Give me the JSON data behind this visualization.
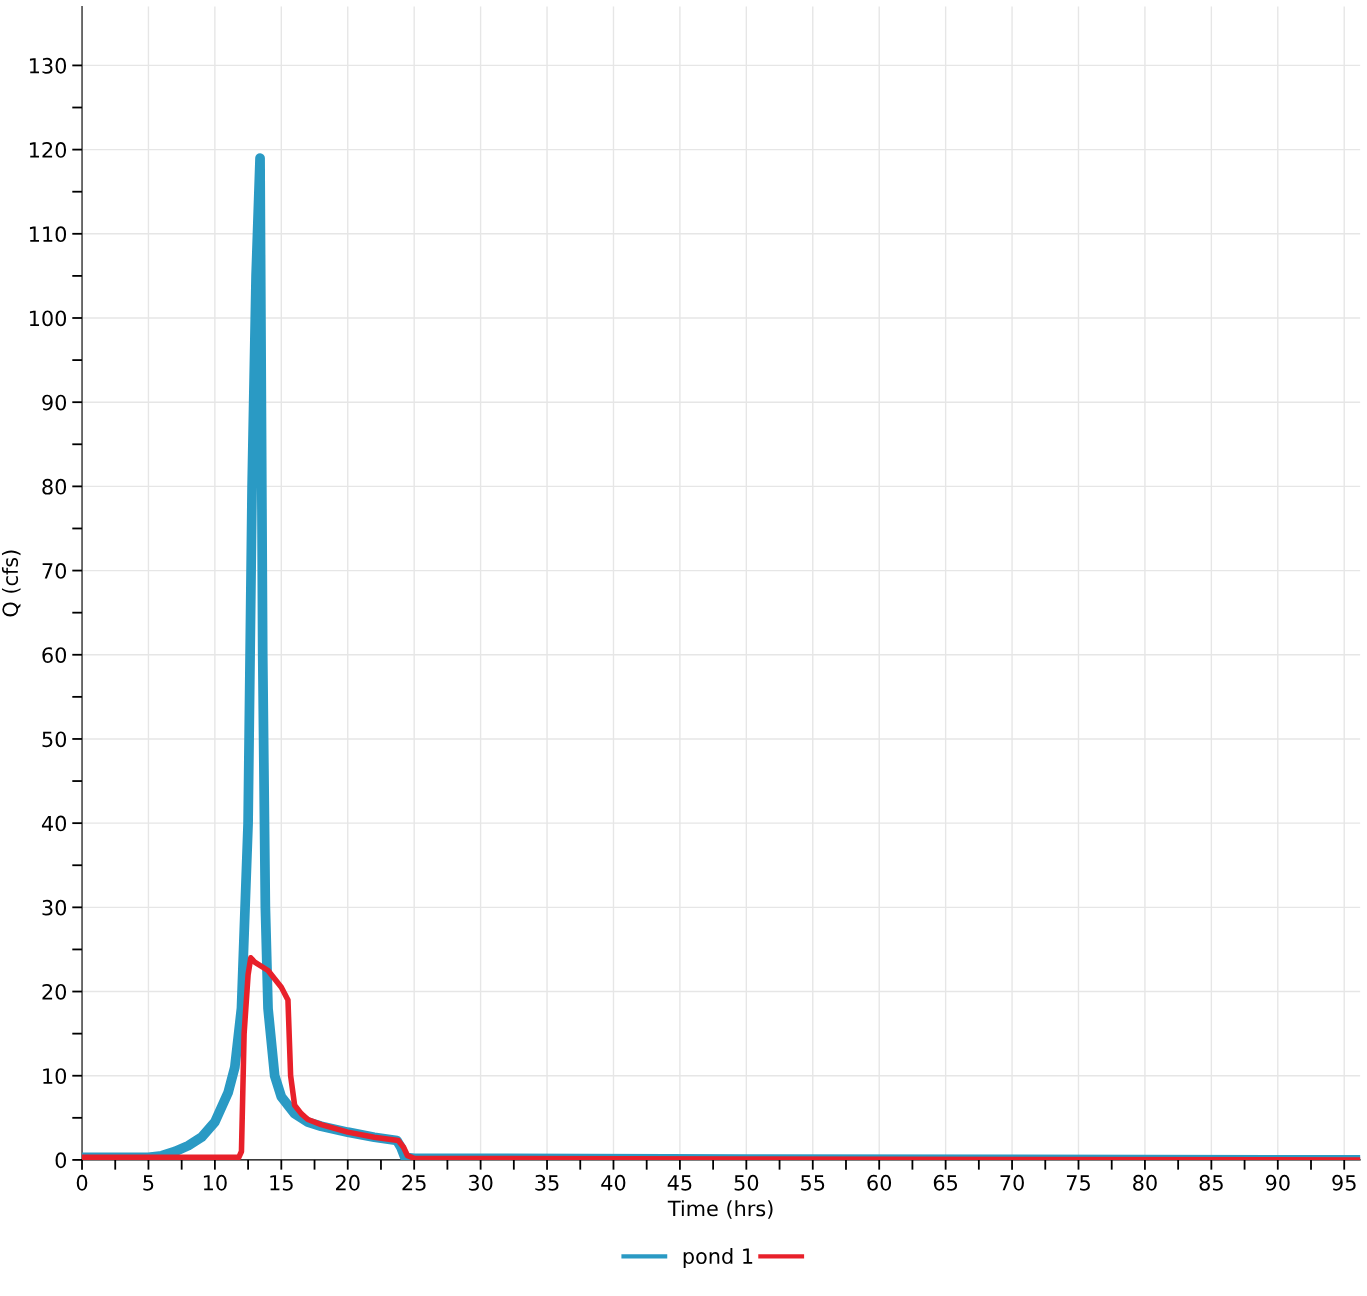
{
  "chart_data": {
    "type": "line",
    "xlabel": "Time (hrs)",
    "ylabel": "Q (cfs)",
    "xlim": [
      0,
      96.2
    ],
    "ylim": [
      0,
      137
    ],
    "xticks": [
      0,
      {
        "value": 2.5,
        "label": null
      },
      5,
      {
        "value": 7.5,
        "label": null
      },
      10,
      {
        "value": 12.5,
        "label": null
      },
      15,
      {
        "value": 17.5,
        "label": null
      },
      20,
      {
        "value": 22.5,
        "label": null
      },
      25,
      {
        "value": 27.5,
        "label": null
      },
      30,
      {
        "value": 32.5,
        "label": null
      },
      35,
      {
        "value": 37.5,
        "label": null
      },
      40,
      {
        "value": 42.5,
        "label": null
      },
      45,
      {
        "value": 47.5,
        "label": null
      },
      50,
      {
        "value": 52.5,
        "label": null
      },
      55,
      {
        "value": 57.5,
        "label": null
      },
      60,
      {
        "value": 62.5,
        "label": null
      },
      65,
      {
        "value": 67.5,
        "label": null
      },
      70,
      {
        "value": 72.5,
        "label": null
      },
      75,
      {
        "value": 77.5,
        "label": null
      },
      80,
      {
        "value": 82.5,
        "label": null
      },
      85,
      {
        "value": 87.5,
        "label": null
      },
      90,
      {
        "value": 92.5,
        "label": null
      },
      95
    ],
    "yticks": [
      0,
      {
        "value": 5,
        "label": null
      },
      10,
      {
        "value": 15,
        "label": null
      },
      20,
      {
        "value": 25,
        "label": null
      },
      30,
      {
        "value": 35,
        "label": null
      },
      40,
      {
        "value": 45,
        "label": null
      },
      50,
      {
        "value": 55,
        "label": null
      },
      60,
      {
        "value": 65,
        "label": null
      },
      70,
      {
        "value": 75,
        "label": null
      },
      80,
      {
        "value": 85,
        "label": null
      },
      90,
      {
        "value": 95,
        "label": null
      },
      100,
      {
        "value": 105,
        "label": null
      },
      110,
      {
        "value": 115,
        "label": null
      },
      120,
      {
        "value": 125,
        "label": null
      },
      130
    ],
    "grid": true,
    "legend": "bottom",
    "marker": "none",
    "line_style": "solid",
    "series": [
      {
        "name": "pond 1",
        "color": "#2a9ac4",
        "x": [
          0,
          5,
          6,
          7,
          8,
          9,
          10,
          11,
          11.5,
          12,
          12.5,
          12.8,
          13.1,
          13.4,
          13.6,
          13.8,
          14,
          14.5,
          15,
          16,
          17,
          18,
          20,
          22,
          23.7,
          24,
          24.3,
          25,
          50,
          96.2
        ],
        "values": [
          0.3,
          0.3,
          0.5,
          1,
          1.7,
          2.7,
          4.5,
          8,
          11,
          18,
          40,
          80,
          105,
          119,
          60,
          30,
          18,
          10,
          7.5,
          5.5,
          4.5,
          4,
          3.3,
          2.7,
          2.3,
          1.5,
          0.3,
          0.2,
          0.1,
          0
        ]
      },
      {
        "color": "#e8202a",
        "x": [
          0,
          11.8,
          12,
          12.2,
          12.5,
          12.7,
          13,
          14,
          15,
          15.5,
          15.7,
          16,
          16.5,
          17,
          18,
          20,
          22,
          23.8,
          24.2,
          24.5,
          25,
          50,
          96.2
        ],
        "values": [
          0.3,
          0.3,
          1,
          15,
          22,
          24,
          23.5,
          22.5,
          20.5,
          19,
          10,
          6.5,
          5.5,
          4.8,
          4.2,
          3.3,
          2.7,
          2.3,
          1.5,
          0.5,
          0.2,
          0.1,
          0
        ]
      }
    ]
  }
}
